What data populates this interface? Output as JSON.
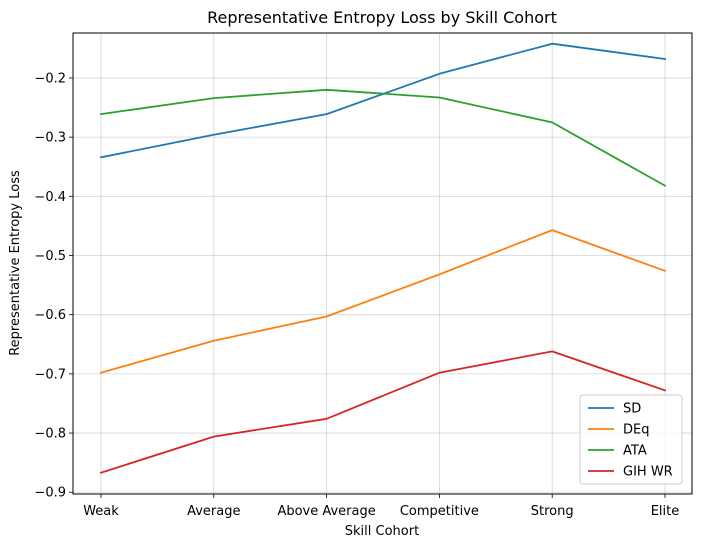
{
  "chart_data": {
    "type": "line",
    "title": "Representative Entropy Loss by Skill Cohort",
    "xlabel": "Skill Cohort",
    "ylabel": "Representative Entropy Loss",
    "categories": [
      "Weak",
      "Average",
      "Above Average",
      "Competitive",
      "Strong",
      "Elite"
    ],
    "ylim": [
      -0.903,
      -0.124
    ],
    "yticks": [
      -0.9,
      -0.8,
      -0.7,
      -0.6,
      -0.5,
      -0.4,
      -0.3,
      -0.2
    ],
    "ytick_labels": [
      "−0.9",
      "−0.8",
      "−0.7",
      "−0.6",
      "−0.5",
      "−0.4",
      "−0.3",
      "−0.2"
    ],
    "grid": true,
    "legend_position": "lower right",
    "series": [
      {
        "name": "SD",
        "color": "#1f77b4",
        "values": [
          -0.334,
          -0.296,
          -0.261,
          -0.193,
          -0.142,
          -0.168
        ]
      },
      {
        "name": "DEq",
        "color": "#ff7f0e",
        "values": [
          -0.698,
          -0.644,
          -0.603,
          -0.532,
          -0.457,
          -0.526
        ]
      },
      {
        "name": "ATA",
        "color": "#2ca02c",
        "values": [
          -0.261,
          -0.234,
          -0.22,
          -0.233,
          -0.275,
          -0.382
        ]
      },
      {
        "name": "GIH WR",
        "color": "#d62728",
        "values": [
          -0.867,
          -0.806,
          -0.776,
          -0.698,
          -0.662,
          -0.728
        ]
      }
    ]
  }
}
